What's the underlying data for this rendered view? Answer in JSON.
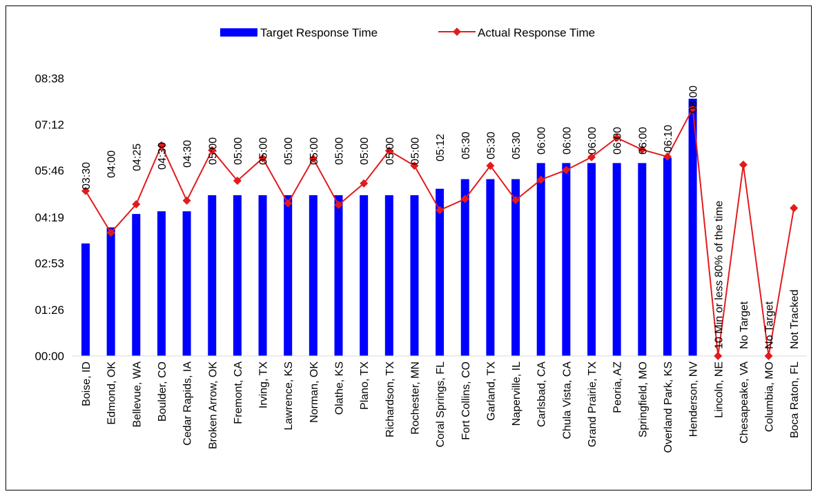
{
  "chart_data": {
    "type": "bar",
    "legend_position": "top-center",
    "grid": false,
    "y_ticks": [
      "00:00",
      "01:26",
      "02:53",
      "04:19",
      "05:46",
      "07:12",
      "08:38"
    ],
    "ylim_seconds": [
      0,
      560
    ],
    "categories": [
      "Boise, ID",
      "Edmond, OK",
      "Bellevue, WA",
      "Boulder, CO",
      "Cedar Rapids, IA",
      "Broken Arrow, OK",
      "Fremont, CA",
      "Irving, TX",
      "Lawrence, KS",
      "Norman, OK",
      "Olathe, KS",
      "Plano, TX",
      "Richardson, TX",
      "Rochester, MN",
      "Coral Springs, FL",
      "Fort Collins, CO",
      "Garland, TX",
      "Naperville, IL",
      "Carlsbad, CA",
      "Chula Vista, CA",
      "Grand Prairie, TX",
      "Peoria, AZ",
      "Springfield, MO",
      "Overland Park, KS",
      "Henderson, NV",
      "Lincoln, NE",
      "Chesapeake, VA",
      "Columbia, MO",
      "Boca Raton, FL"
    ],
    "series": [
      {
        "name": "Target Response Time",
        "kind": "bar",
        "color": "#0000ff",
        "values_seconds": [
          210,
          240,
          265,
          270,
          270,
          300,
          300,
          300,
          300,
          300,
          300,
          300,
          300,
          300,
          312,
          330,
          330,
          330,
          360,
          360,
          360,
          360,
          360,
          370,
          480,
          null,
          null,
          null,
          null
        ]
      },
      {
        "name": "Actual Response Time",
        "kind": "line",
        "color": "#e31a1c",
        "values_seconds": [
          308,
          230,
          283,
          393,
          290,
          384,
          327,
          369,
          285,
          368,
          282,
          322,
          383,
          355,
          272,
          293,
          355,
          291,
          329,
          347,
          371,
          407,
          385,
          372,
          462,
          0,
          357,
          0,
          276
        ]
      }
    ],
    "data_labels": [
      "03:30",
      "04:00",
      "04:25",
      "04:30",
      "04:30",
      "05:00",
      "05:00",
      "05:00",
      "05:00",
      "05:00",
      "05:00",
      "05:00",
      "05:00",
      "05:00",
      "05:12",
      "05:30",
      "05:30",
      "05:30",
      "06:00",
      "06:00",
      "06:00",
      "06:00",
      "06:00",
      "06:10",
      "08:00",
      "10 Min or less 80% of the time",
      "No Target",
      "No Target",
      "Not Tracked"
    ]
  }
}
